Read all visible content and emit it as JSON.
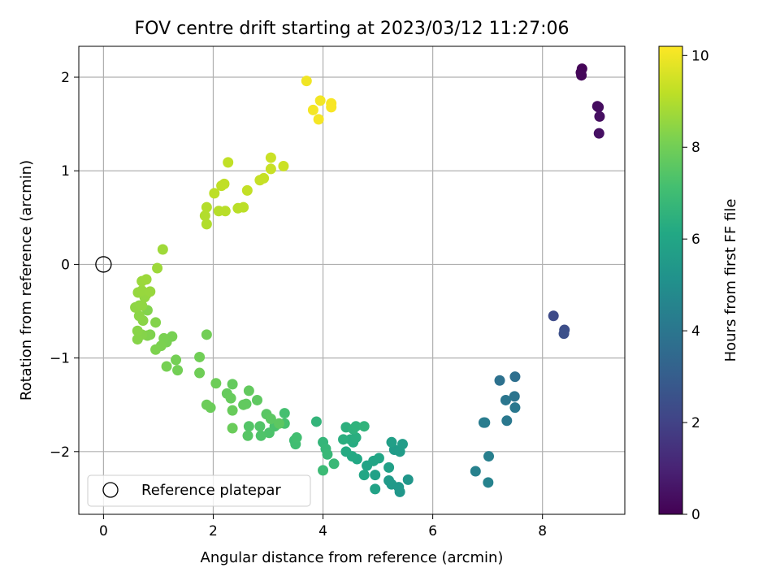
{
  "chart_data": {
    "type": "scatter",
    "title": "FOV centre drift starting at 2023/03/12 11:27:06",
    "xlabel": "Angular distance from reference (arcmin)",
    "ylabel": "Rotation from reference (arcmin)",
    "xlim": [
      -0.45,
      9.5
    ],
    "ylim": [
      -2.67,
      2.33
    ],
    "xticks": [
      0,
      2,
      4,
      6,
      8
    ],
    "yticks": [
      -2,
      -1,
      0,
      1,
      2
    ],
    "xtick_labels": [
      "0",
      "2",
      "4",
      "6",
      "8"
    ],
    "ytick_labels": [
      "−2",
      "−1",
      "0",
      "1",
      "2"
    ],
    "grid": true,
    "legend": {
      "placement": "lower-left",
      "label": "Reference platepar"
    },
    "reference_point": {
      "x": 0,
      "y": 0
    },
    "colorbar": {
      "label": "Hours from first FF file",
      "colormap": "viridis",
      "range": [
        0,
        10.2
      ],
      "ticks": [
        0,
        2,
        4,
        6,
        8,
        10
      ],
      "tick_labels": [
        "0",
        "2",
        "4",
        "6",
        "8",
        "10"
      ]
    },
    "series": [
      {
        "points": [
          {
            "x": 8.72,
            "y": 2.09,
            "t": 0.1
          },
          {
            "x": 8.7,
            "y": 2.05,
            "t": 0.15
          },
          {
            "x": 8.71,
            "y": 2.02,
            "t": 0.2
          },
          {
            "x": 9.0,
            "y": 1.69,
            "t": 0.3
          },
          {
            "x": 9.02,
            "y": 1.68,
            "t": 0.35
          },
          {
            "x": 9.04,
            "y": 1.58,
            "t": 0.4
          },
          {
            "x": 9.03,
            "y": 1.4,
            "t": 0.45
          },
          {
            "x": 8.2,
            "y": -0.55,
            "t": 2.3
          },
          {
            "x": 8.4,
            "y": -0.7,
            "t": 2.4
          },
          {
            "x": 8.39,
            "y": -0.74,
            "t": 2.5
          },
          {
            "x": 7.5,
            "y": -1.2,
            "t": 3.7
          },
          {
            "x": 7.22,
            "y": -1.24,
            "t": 3.8
          },
          {
            "x": 7.49,
            "y": -1.41,
            "t": 3.9
          },
          {
            "x": 7.33,
            "y": -1.45,
            "t": 4.0
          },
          {
            "x": 7.5,
            "y": -1.53,
            "t": 4.05
          },
          {
            "x": 7.35,
            "y": -1.67,
            "t": 4.1
          },
          {
            "x": 6.93,
            "y": -1.69,
            "t": 4.2
          },
          {
            "x": 6.95,
            "y": -1.69,
            "t": 4.25
          },
          {
            "x": 7.02,
            "y": -2.05,
            "t": 4.35
          },
          {
            "x": 6.78,
            "y": -2.21,
            "t": 4.45
          },
          {
            "x": 7.01,
            "y": -2.33,
            "t": 4.5
          },
          {
            "x": 5.55,
            "y": -2.3,
            "t": 5.3
          },
          {
            "x": 5.4,
            "y": -2.43,
            "t": 5.35
          },
          {
            "x": 5.38,
            "y": -2.38,
            "t": 5.4
          },
          {
            "x": 5.25,
            "y": -2.35,
            "t": 5.45
          },
          {
            "x": 5.2,
            "y": -2.31,
            "t": 5.5
          },
          {
            "x": 5.3,
            "y": -1.98,
            "t": 5.55
          },
          {
            "x": 5.4,
            "y": -2.0,
            "t": 5.6
          },
          {
            "x": 5.45,
            "y": -1.92,
            "t": 5.65
          },
          {
            "x": 5.25,
            "y": -1.9,
            "t": 5.7
          },
          {
            "x": 5.2,
            "y": -2.17,
            "t": 5.75
          },
          {
            "x": 4.95,
            "y": -2.25,
            "t": 5.8
          },
          {
            "x": 4.95,
            "y": -2.4,
            "t": 5.85
          },
          {
            "x": 4.8,
            "y": -2.15,
            "t": 5.9
          },
          {
            "x": 4.92,
            "y": -2.1,
            "t": 5.95
          },
          {
            "x": 5.02,
            "y": -2.07,
            "t": 6.0
          },
          {
            "x": 4.75,
            "y": -2.25,
            "t": 6.05
          },
          {
            "x": 4.62,
            "y": -2.08,
            "t": 6.1
          },
          {
            "x": 4.53,
            "y": -2.05,
            "t": 6.15
          },
          {
            "x": 4.42,
            "y": -2.0,
            "t": 6.2
          },
          {
            "x": 4.55,
            "y": -1.9,
            "t": 6.25
          },
          {
            "x": 4.5,
            "y": -1.87,
            "t": 6.3
          },
          {
            "x": 4.6,
            "y": -1.85,
            "t": 6.35
          },
          {
            "x": 4.37,
            "y": -1.87,
            "t": 6.4
          },
          {
            "x": 4.42,
            "y": -1.74,
            "t": 6.45
          },
          {
            "x": 4.55,
            "y": -1.76,
            "t": 6.5
          },
          {
            "x": 4.6,
            "y": -1.73,
            "t": 6.55
          },
          {
            "x": 4.75,
            "y": -1.73,
            "t": 6.6
          },
          {
            "x": 3.88,
            "y": -1.68,
            "t": 6.65
          },
          {
            "x": 4.0,
            "y": -1.9,
            "t": 6.7
          },
          {
            "x": 4.05,
            "y": -1.97,
            "t": 6.75
          },
          {
            "x": 4.08,
            "y": -2.03,
            "t": 6.8
          },
          {
            "x": 4.2,
            "y": -2.13,
            "t": 6.85
          },
          {
            "x": 4.0,
            "y": -2.2,
            "t": 6.9
          },
          {
            "x": 3.48,
            "y": -1.88,
            "t": 7.0
          },
          {
            "x": 3.5,
            "y": -1.92,
            "t": 7.05
          },
          {
            "x": 3.52,
            "y": -1.85,
            "t": 7.1
          },
          {
            "x": 3.3,
            "y": -1.59,
            "t": 7.15
          },
          {
            "x": 3.3,
            "y": -1.7,
            "t": 7.2
          },
          {
            "x": 3.12,
            "y": -1.73,
            "t": 7.25
          },
          {
            "x": 3.02,
            "y": -1.8,
            "t": 7.3
          },
          {
            "x": 2.87,
            "y": -1.83,
            "t": 7.35
          },
          {
            "x": 2.85,
            "y": -1.73,
            "t": 7.4
          },
          {
            "x": 2.65,
            "y": -1.73,
            "t": 7.45
          },
          {
            "x": 2.63,
            "y": -1.83,
            "t": 7.5
          },
          {
            "x": 2.97,
            "y": -1.6,
            "t": 7.55
          },
          {
            "x": 3.05,
            "y": -1.65,
            "t": 7.6
          },
          {
            "x": 3.2,
            "y": -1.7,
            "t": 7.62
          },
          {
            "x": 2.8,
            "y": -1.45,
            "t": 7.65
          },
          {
            "x": 2.6,
            "y": -1.49,
            "t": 7.68
          },
          {
            "x": 2.55,
            "y": -1.5,
            "t": 7.7
          },
          {
            "x": 2.65,
            "y": -1.35,
            "t": 7.72
          },
          {
            "x": 2.35,
            "y": -1.28,
            "t": 7.75
          },
          {
            "x": 2.25,
            "y": -1.38,
            "t": 7.78
          },
          {
            "x": 2.32,
            "y": -1.43,
            "t": 7.8
          },
          {
            "x": 2.35,
            "y": -1.56,
            "t": 7.82
          },
          {
            "x": 2.35,
            "y": -1.75,
            "t": 7.85
          },
          {
            "x": 1.95,
            "y": -1.53,
            "t": 7.88
          },
          {
            "x": 1.88,
            "y": -1.5,
            "t": 7.9
          },
          {
            "x": 2.05,
            "y": -1.27,
            "t": 7.92
          },
          {
            "x": 1.75,
            "y": -1.16,
            "t": 7.95
          },
          {
            "x": 1.75,
            "y": -0.99,
            "t": 7.98
          },
          {
            "x": 1.88,
            "y": -0.75,
            "t": 8.0
          },
          {
            "x": 1.35,
            "y": -1.13,
            "t": 8.02
          },
          {
            "x": 1.32,
            "y": -1.02,
            "t": 8.05
          },
          {
            "x": 1.15,
            "y": -1.09,
            "t": 8.08
          },
          {
            "x": 1.25,
            "y": -0.77,
            "t": 8.1
          },
          {
            "x": 1.15,
            "y": -0.83,
            "t": 8.12
          },
          {
            "x": 1.1,
            "y": -0.79,
            "t": 8.15
          },
          {
            "x": 1.05,
            "y": -0.87,
            "t": 8.18
          },
          {
            "x": 0.95,
            "y": -0.91,
            "t": 8.2
          },
          {
            "x": 0.85,
            "y": -0.75,
            "t": 8.22
          },
          {
            "x": 0.8,
            "y": -0.76,
            "t": 8.25
          },
          {
            "x": 0.8,
            "y": -0.49,
            "t": 8.28
          },
          {
            "x": 0.95,
            "y": -0.62,
            "t": 8.3
          },
          {
            "x": 0.7,
            "y": -0.75,
            "t": 8.32
          },
          {
            "x": 0.62,
            "y": -0.8,
            "t": 8.35
          },
          {
            "x": 0.62,
            "y": -0.71,
            "t": 8.38
          },
          {
            "x": 0.72,
            "y": -0.6,
            "t": 8.4
          },
          {
            "x": 0.65,
            "y": -0.55,
            "t": 8.42
          },
          {
            "x": 0.65,
            "y": -0.44,
            "t": 8.45
          },
          {
            "x": 0.58,
            "y": -0.46,
            "t": 8.48
          },
          {
            "x": 0.7,
            "y": -0.44,
            "t": 8.5
          },
          {
            "x": 0.75,
            "y": -0.35,
            "t": 8.52
          },
          {
            "x": 0.78,
            "y": -0.32,
            "t": 8.55
          },
          {
            "x": 0.63,
            "y": -0.3,
            "t": 8.58
          },
          {
            "x": 0.7,
            "y": -0.28,
            "t": 8.6
          },
          {
            "x": 0.85,
            "y": -0.29,
            "t": 8.62
          },
          {
            "x": 0.7,
            "y": -0.18,
            "t": 8.65
          },
          {
            "x": 0.78,
            "y": -0.16,
            "t": 8.68
          },
          {
            "x": 0.98,
            "y": -0.04,
            "t": 8.7
          },
          {
            "x": 1.08,
            "y": 0.16,
            "t": 8.72
          },
          {
            "x": 1.88,
            "y": 0.43,
            "t": 9.0
          },
          {
            "x": 1.85,
            "y": 0.52,
            "t": 9.02
          },
          {
            "x": 1.88,
            "y": 0.61,
            "t": 9.05
          },
          {
            "x": 2.1,
            "y": 0.57,
            "t": 9.08
          },
          {
            "x": 2.22,
            "y": 0.57,
            "t": 9.1
          },
          {
            "x": 2.45,
            "y": 0.6,
            "t": 9.12
          },
          {
            "x": 2.55,
            "y": 0.61,
            "t": 9.15
          },
          {
            "x": 2.02,
            "y": 0.76,
            "t": 9.18
          },
          {
            "x": 2.15,
            "y": 0.84,
            "t": 9.2
          },
          {
            "x": 2.2,
            "y": 0.86,
            "t": 9.22
          },
          {
            "x": 2.27,
            "y": 1.09,
            "t": 9.25
          },
          {
            "x": 2.62,
            "y": 0.79,
            "t": 9.28
          },
          {
            "x": 2.85,
            "y": 0.9,
            "t": 9.3
          },
          {
            "x": 2.92,
            "y": 0.92,
            "t": 9.32
          },
          {
            "x": 3.05,
            "y": 1.02,
            "t": 9.35
          },
          {
            "x": 3.05,
            "y": 1.14,
            "t": 9.38
          },
          {
            "x": 3.28,
            "y": 1.05,
            "t": 9.4
          },
          {
            "x": 3.7,
            "y": 1.96,
            "t": 10.0
          },
          {
            "x": 3.95,
            "y": 1.75,
            "t": 10.02
          },
          {
            "x": 3.82,
            "y": 1.65,
            "t": 10.05
          },
          {
            "x": 3.92,
            "y": 1.55,
            "t": 10.08
          },
          {
            "x": 4.15,
            "y": 1.72,
            "t": 10.1
          },
          {
            "x": 4.15,
            "y": 1.68,
            "t": 10.12
          }
        ]
      }
    ]
  }
}
